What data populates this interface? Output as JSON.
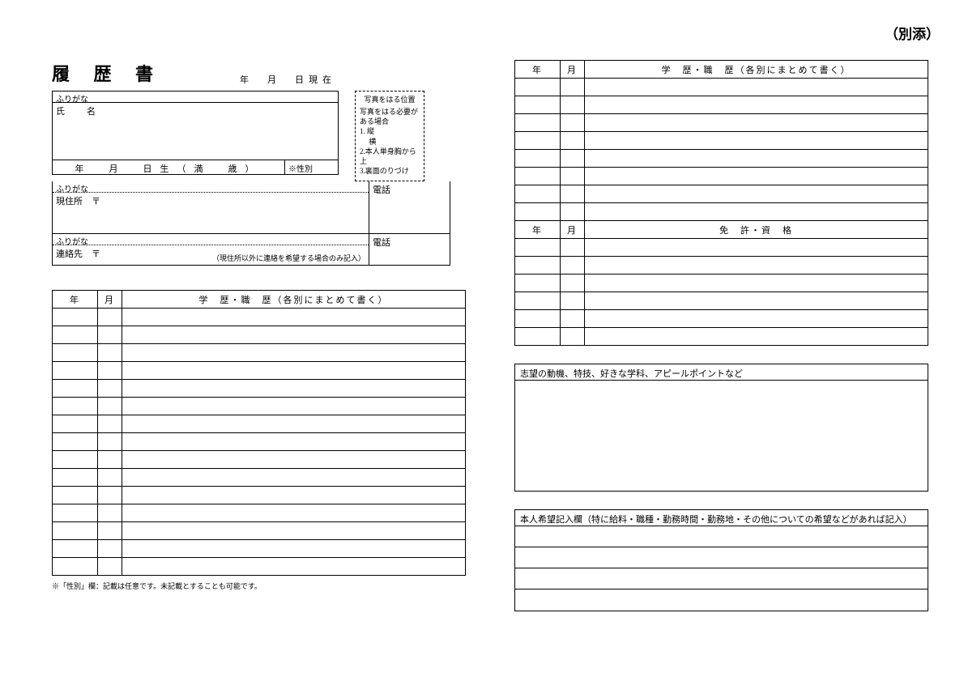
{
  "attachment_label": "（別添）",
  "title": "履 歴 書",
  "date_suffix": "年　月　日現在",
  "photo_box": {
    "title": "写真をはる位置",
    "intro": "写真をはる必要がある場合",
    "line1": "1. 縦",
    "line1b": "　 横",
    "line2": "2.本人単身胸から上",
    "line3": "3.裏面のりづけ"
  },
  "labels": {
    "furigana": "ふりがな",
    "name": "氏　名",
    "birth": "年　月　日生（満　歳）",
    "gender": "※性別",
    "phone": "電話",
    "address": "現住所　〒",
    "contact": "連絡先　〒",
    "contact_note": "（現住所以外に連絡を希望する場合のみ記入）",
    "year": "年",
    "month": "月",
    "history_header": "学　歴・職　歴（各別にまとめて書く）",
    "license_header": "免　許・資　格",
    "motivation_header": "志望の動機、特技、好きな学科、アピールポイントなど",
    "wishes_header": "本人希望記入欄（特に給料・職種・勤務時間・勤務地・その他についての希望などがあれば記入）"
  },
  "footnote": "※「性別」欄：記載は任意です。未記載とすることも可能です。",
  "left_history_rows": 15,
  "right_history_top_rows": 8,
  "right_license_rows": 6,
  "wish_lines": 4
}
